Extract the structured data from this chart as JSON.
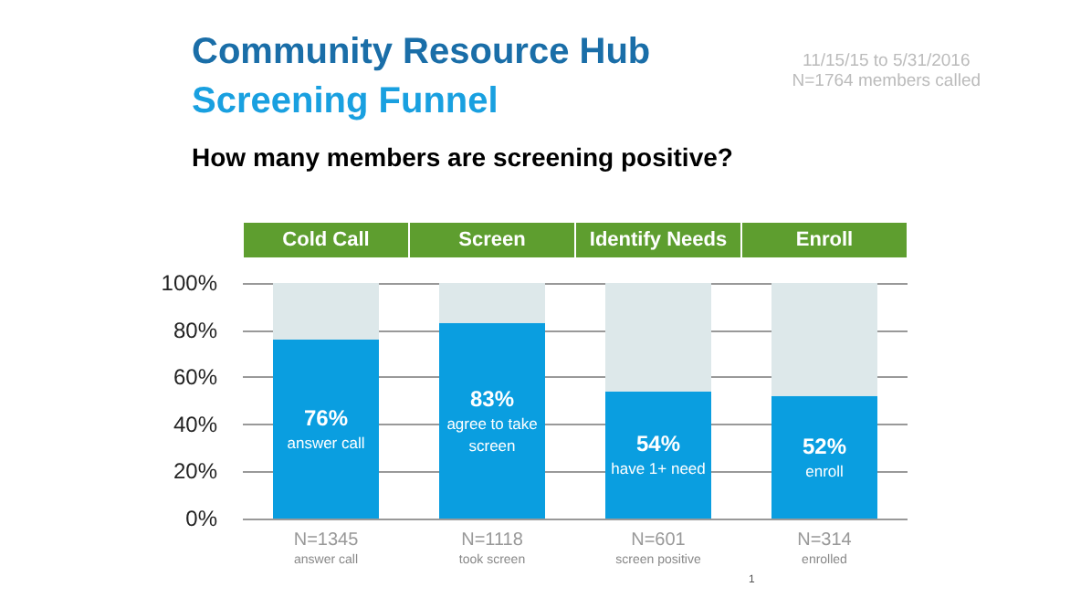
{
  "chart_data": {
    "type": "bar",
    "stacked": true,
    "title": "Community Resource Hub\nScreening Funnel",
    "subtitle": "How many members are screening positive?",
    "categories": [
      "Cold Call",
      "Screen",
      "Identify Needs",
      "Enroll"
    ],
    "series": [
      {
        "color": "#0a9ee0",
        "values": [
          76,
          83,
          54,
          52
        ],
        "value_labels": [
          "76%\nanswer call",
          "83%\nagree to take\nscreen",
          "54%\nhave 1+ need",
          "52%\nenroll"
        ]
      },
      {
        "color": "#dde8ea",
        "values": [
          24,
          17,
          46,
          48
        ]
      }
    ],
    "ylim": [
      0,
      100
    ],
    "yticks": [
      {
        "value": 0,
        "label": "0%"
      },
      {
        "value": 20,
        "label": "20%"
      },
      {
        "value": 40,
        "label": "40%"
      },
      {
        "value": 60,
        "label": "60%"
      },
      {
        "value": 80,
        "label": "80%"
      },
      {
        "value": 100,
        "label": "100%"
      }
    ],
    "grid": "y",
    "annotations": [
      "11/15/15 to 5/31/2016\nN=1764 members called",
      "N=1345\nanswer call",
      "N=1118\ntook screen",
      "N=601\nscreen positive",
      "N=314\nenrolled",
      "1"
    ]
  }
}
